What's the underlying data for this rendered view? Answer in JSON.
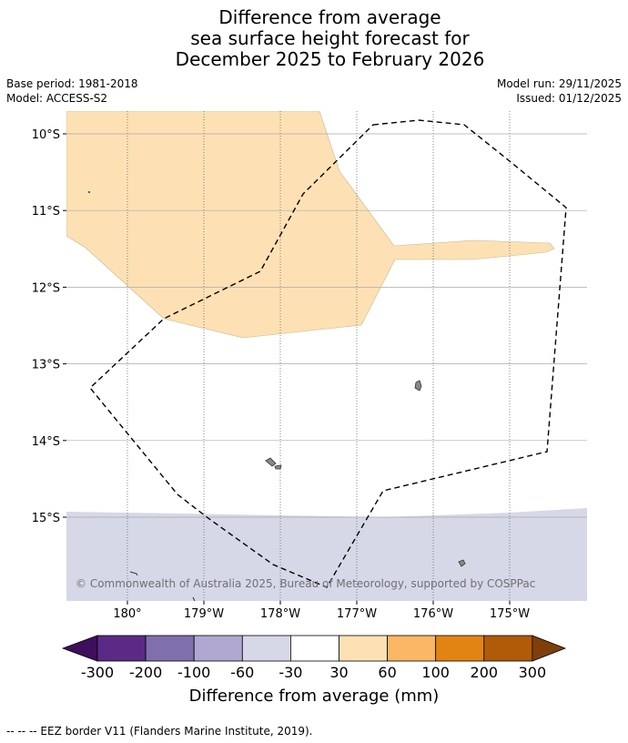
{
  "title_lines": [
    "Difference from average",
    "sea surface height forecast for",
    "December 2025 to February 2026"
  ],
  "meta_left": [
    "Base period: 1981-2018",
    "Model: ACCESS-S2"
  ],
  "meta_right": [
    "Model run: 29/11/2025",
    "Issued: 01/12/2025"
  ],
  "chart_data": {
    "type": "heatmap",
    "title": "Difference from average sea surface height forecast for December 2025 to February 2026",
    "lon_range": [
      179.2,
      -174.0
    ],
    "lat_range": [
      -9.7,
      -16.1
    ],
    "x_ticks": [
      "180°",
      "179°W",
      "178°W",
      "177°W",
      "176°W",
      "175°W"
    ],
    "x_tick_values": [
      180,
      179,
      178,
      177,
      176,
      175
    ],
    "y_ticks": [
      "10°S",
      "11°S",
      "12°S",
      "13°S",
      "14°S",
      "15°S"
    ],
    "y_tick_values": [
      10,
      11,
      12,
      13,
      14,
      15
    ],
    "regions": [
      {
        "category": "30 to 60 mm",
        "color": "#fde1b5",
        "location": "north-west, tongue extending east near 11.5°S"
      },
      {
        "category": "-60 to -30 mm",
        "color": "#d6d8e8",
        "location": "south of ~15°S"
      },
      {
        "category": "-30 to 30 mm",
        "color": "#ffffff",
        "location": "remainder"
      }
    ],
    "colorbar": {
      "label": "Difference from average (mm)",
      "ticks": [
        "-300",
        "-200",
        "-100",
        "-60",
        "-30",
        "30",
        "60",
        "100",
        "200",
        "300"
      ],
      "bins": [
        {
          "color": "#5b2a86"
        },
        {
          "color": "#7f6fad"
        },
        {
          "color": "#b0a8d1"
        },
        {
          "color": "#d6d8e8"
        },
        {
          "color": "#ffffff"
        },
        {
          "color": "#fde1b5"
        },
        {
          "color": "#fbb763"
        },
        {
          "color": "#e28413"
        },
        {
          "color": "#b15a08"
        }
      ],
      "extend_low_color": "#3f0f5e",
      "extend_high_color": "#7f3f0b"
    },
    "eez_border": "dashed",
    "copyright": "© Commonwealth of Australia 2025, Bureau of Meteorology, supported by COSPPac"
  },
  "footer": "--  --  -- EEZ border V11 (Flanders Marine Institute, 2019)."
}
